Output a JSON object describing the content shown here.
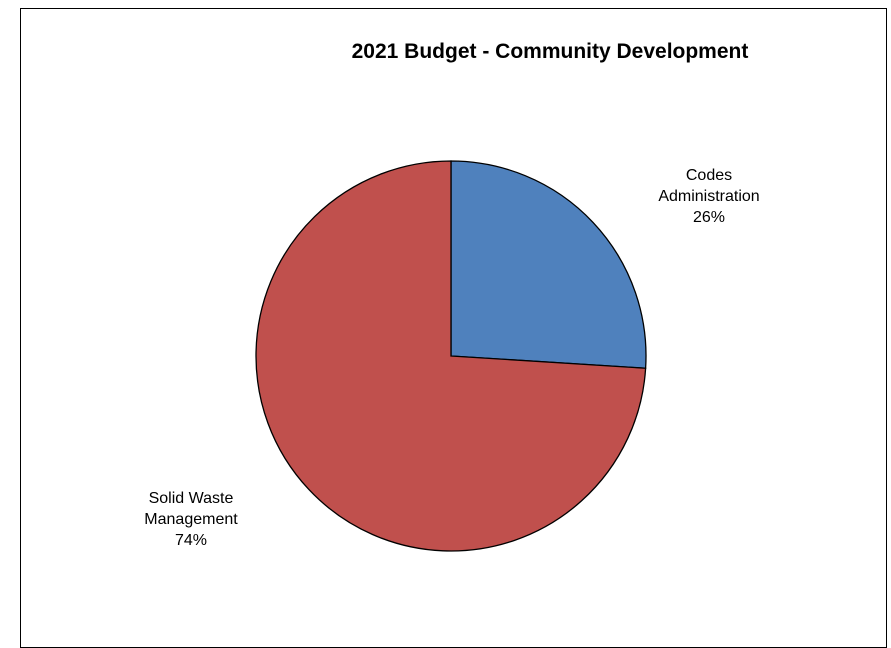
{
  "chart_data": {
    "type": "pie",
    "title": "2021 Budget - Community Development",
    "slices": [
      {
        "label_lines": [
          "Codes",
          "Administration"
        ],
        "percent_label": "26%",
        "value": 26,
        "color": "#4F81BD"
      },
      {
        "label_lines": [
          "Solid Waste",
          "Management"
        ],
        "percent_label": "74%",
        "value": 74,
        "color": "#C0504D"
      }
    ],
    "legend": "none",
    "start_angle": "12 o'clock",
    "direction": "clockwise"
  }
}
